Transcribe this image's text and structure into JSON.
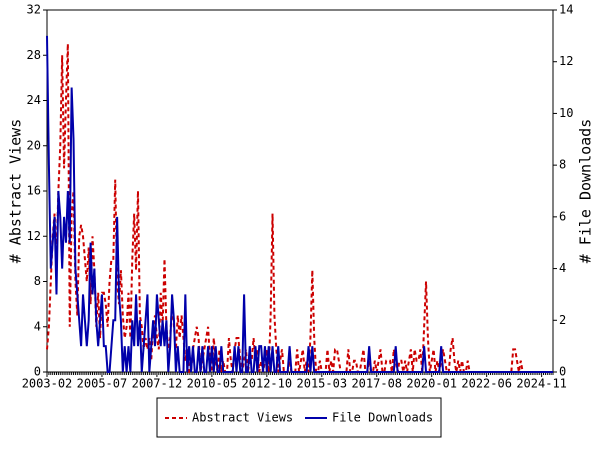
{
  "chart_data": {
    "type": "line",
    "y_label": "# Abstract Views",
    "y2_label": "# File Downloads",
    "categories": [
      "2003-02",
      null,
      null,
      null,
      null,
      null,
      null,
      null,
      null,
      null,
      null,
      null,
      null,
      null,
      null,
      null,
      null,
      null,
      null,
      null,
      null,
      null,
      null,
      null,
      null,
      null,
      null,
      null,
      null,
      "2005-07",
      null,
      null,
      null,
      null,
      null,
      null,
      null,
      null,
      null,
      null,
      null,
      null,
      null,
      null,
      null,
      null,
      null,
      null,
      null,
      null,
      null,
      null,
      null,
      null,
      null,
      null,
      null,
      null,
      "2007-12",
      null,
      null,
      null,
      null,
      null,
      null,
      null,
      null,
      null,
      null,
      null,
      null,
      null,
      null,
      null,
      null,
      null,
      null,
      null,
      null,
      null,
      null,
      null,
      null,
      null,
      null,
      null,
      null,
      "2010-05",
      null,
      null,
      null,
      null,
      null,
      null,
      null,
      null,
      null,
      null,
      null,
      null,
      null,
      null,
      null,
      null,
      null,
      null,
      null,
      null,
      null,
      null,
      null,
      null,
      null,
      null,
      null,
      null,
      "2012-10",
      null,
      null,
      null,
      null,
      null,
      null,
      null,
      null,
      null,
      null,
      null,
      null,
      null,
      null,
      null,
      null,
      null,
      null,
      null,
      null,
      null,
      null,
      null,
      null,
      null,
      null,
      null,
      null,
      "2015-03",
      null,
      null,
      null,
      null,
      null,
      null,
      null,
      null,
      null,
      null,
      null,
      null,
      null,
      null,
      null,
      null,
      null,
      null,
      null,
      null,
      null,
      null,
      null,
      null,
      null,
      null,
      null,
      null,
      "2017-08",
      null,
      null,
      null,
      null,
      null,
      null,
      null,
      null,
      null,
      null,
      null,
      null,
      null,
      null,
      null,
      null,
      null,
      null,
      null,
      null,
      null,
      null,
      null,
      null,
      null,
      null,
      null,
      null,
      "2020-01",
      null,
      null,
      null,
      null,
      null,
      null,
      null,
      null,
      null,
      null,
      null,
      null,
      null,
      null,
      null,
      null,
      null,
      null,
      null,
      null,
      null,
      null,
      null,
      null,
      null,
      null,
      null,
      null,
      "2022-06",
      null,
      null,
      null,
      null,
      null,
      null,
      null,
      null,
      null,
      null,
      null,
      null,
      null,
      null,
      null,
      null,
      null,
      null,
      null,
      null,
      null,
      null,
      null,
      null,
      null,
      null,
      null,
      null,
      "2024-11",
      null,
      null,
      null,
      null,
      null,
      null
    ],
    "series": [
      {
        "name": "Abstract Views",
        "color": "#cc0000",
        "dashed": true,
        "values": [
          2,
          4,
          8,
          12,
          14,
          10,
          16,
          20,
          28,
          18,
          24,
          29,
          4,
          14,
          16,
          8,
          5,
          12,
          13,
          12,
          10,
          8,
          11,
          6,
          12,
          9,
          4,
          7,
          3,
          7,
          7,
          6,
          4,
          8,
          10,
          10,
          17,
          8,
          6,
          9,
          5,
          3,
          4,
          7,
          3,
          10,
          14,
          9,
          16,
          5,
          4,
          2,
          3,
          2,
          3,
          1,
          4,
          5,
          3,
          2,
          7,
          4,
          10,
          4,
          2,
          3,
          6,
          4,
          2,
          5,
          3,
          5,
          3,
          1,
          2,
          0,
          0,
          2,
          3,
          4,
          3,
          0,
          1,
          2,
          3,
          4,
          1,
          0,
          3,
          1,
          0,
          2,
          0,
          1,
          0,
          0,
          3,
          1,
          0,
          2,
          3,
          3,
          1,
          0,
          1,
          2,
          0,
          1,
          1,
          3,
          1,
          2,
          0,
          1,
          0,
          1,
          2,
          0,
          5,
          14,
          5,
          2,
          0,
          1,
          2,
          0,
          0,
          0,
          1,
          0,
          0,
          0,
          2,
          0,
          1,
          2,
          0,
          1,
          0,
          3,
          9,
          3,
          0,
          0,
          1,
          0,
          0,
          0,
          2,
          0,
          1,
          0,
          2,
          2,
          1,
          0,
          0,
          0,
          0,
          2,
          0,
          0,
          1,
          1,
          0,
          0,
          1,
          2,
          0,
          0,
          1,
          0,
          0,
          1,
          0,
          1,
          2,
          0,
          0,
          1,
          1,
          1,
          0,
          2,
          1,
          0,
          1,
          1,
          0,
          1,
          0,
          1,
          2,
          0,
          2,
          1,
          1,
          2,
          0,
          4,
          8,
          3,
          0,
          1,
          2,
          0,
          1,
          0,
          1,
          2,
          1,
          0,
          0,
          2,
          3,
          1,
          0,
          1,
          0,
          1,
          0,
          0,
          1,
          0,
          0,
          0,
          0,
          0,
          0,
          0,
          0,
          0,
          0,
          0,
          0,
          0,
          0,
          0,
          0,
          0,
          0,
          0,
          0,
          0,
          0,
          0,
          2,
          2,
          1,
          0,
          1,
          0,
          0,
          0,
          0,
          0,
          0,
          0,
          0,
          0,
          0,
          0,
          0,
          0,
          0,
          0,
          0,
          0
        ]
      },
      {
        "name": "File Downloads",
        "color": "#0000aa",
        "dashed": false,
        "axis": "y2",
        "values": [
          13,
          8,
          4,
          5,
          6,
          3,
          7,
          6,
          4,
          6,
          5,
          7,
          5,
          11,
          9,
          4,
          3,
          2,
          1,
          3,
          2,
          1,
          2,
          5,
          3,
          4,
          2,
          1,
          2,
          3,
          1,
          1,
          0,
          0,
          1,
          2,
          2,
          6,
          3,
          2,
          0,
          1,
          0,
          1,
          0,
          2,
          1,
          3,
          1,
          2,
          0,
          1,
          2,
          3,
          0,
          1,
          2,
          1,
          3,
          2,
          1,
          2,
          1,
          2,
          0,
          1,
          3,
          2,
          0,
          1,
          0,
          0,
          0,
          3,
          0,
          1,
          0,
          1,
          0,
          0,
          1,
          0,
          1,
          0,
          0,
          1,
          0,
          1,
          0,
          1,
          0,
          0,
          1,
          0,
          0,
          0,
          0,
          0,
          0,
          1,
          0,
          1,
          0,
          0,
          3,
          0,
          0,
          1,
          0,
          0,
          1,
          0,
          1,
          1,
          0,
          1,
          0,
          1,
          0,
          1,
          0,
          0,
          1,
          0,
          0,
          0,
          0,
          0,
          1,
          0,
          0,
          0,
          0,
          0,
          0,
          0,
          0,
          0,
          1,
          0,
          1,
          0,
          0,
          0,
          0,
          0,
          0,
          0,
          0,
          0,
          0,
          0,
          0,
          0,
          0,
          0,
          0,
          0,
          0,
          0,
          0,
          0,
          0,
          0,
          0,
          0,
          0,
          0,
          0,
          0,
          1,
          0,
          0,
          0,
          0,
          0,
          0,
          0,
          0,
          0,
          0,
          0,
          0,
          0,
          1,
          0,
          0,
          0,
          0,
          0,
          0,
          0,
          0,
          0,
          0,
          0,
          0,
          0,
          0,
          1,
          0,
          0,
          0,
          0,
          0,
          0,
          0,
          0,
          1,
          0,
          0,
          0,
          0,
          0,
          0,
          0,
          0,
          0,
          0,
          0,
          0,
          0,
          0,
          0,
          0,
          0,
          0,
          0,
          0,
          0,
          0,
          0,
          0,
          0,
          0,
          0,
          0,
          0,
          0,
          0,
          0,
          0,
          0,
          0,
          0,
          0,
          0,
          0,
          0,
          0,
          0,
          0,
          0,
          0,
          0,
          0,
          0,
          0,
          0,
          0,
          0,
          0,
          0,
          0,
          0,
          0,
          0,
          0
        ]
      }
    ],
    "ylim": [
      0,
      32
    ],
    "yticks": [
      0,
      4,
      8,
      12,
      16,
      20,
      24,
      28,
      32
    ],
    "y2lim": [
      0,
      14
    ],
    "y2ticks": [
      0,
      2,
      4,
      6,
      8,
      10,
      12,
      14
    ],
    "grid": false
  }
}
